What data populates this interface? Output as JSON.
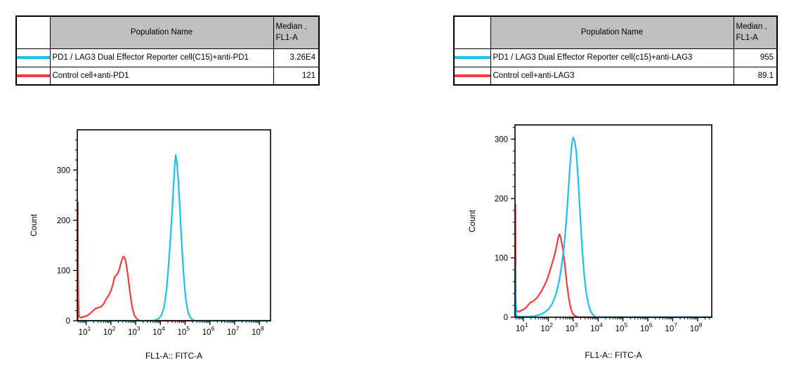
{
  "colors": {
    "reporter_cyan": "#18C2EE",
    "control_red": "#F73B3B",
    "table_header_bg": "#C0C0C0",
    "axis_black": "#000000"
  },
  "tables": [
    {
      "headers": {
        "population": "Population Name",
        "median_line1": "Median ,",
        "median_line2": "FL1-A"
      },
      "rows": [
        {
          "color": "#18C2EE",
          "name": "PD1 / LAG3 Dual Effector Reporter cell(C15)+anti-PD1",
          "median": "3.26E4"
        },
        {
          "color": "#F73B3B",
          "name": "Control cell+anti-PD1",
          "median": "121"
        }
      ]
    },
    {
      "headers": {
        "population": "Population Name",
        "median_line1": "Median ,",
        "median_line2": "FL1-A"
      },
      "rows": [
        {
          "color": "#18C2EE",
          "name": "PD1 / LAG3 Dual Effector Reporter cell(c15)+anti-LAG3",
          "median": "955"
        },
        {
          "color": "#F73B3B",
          "name": "Control cell+anti-LAG3",
          "median": "89.1"
        }
      ]
    }
  ],
  "chart_data": [
    {
      "type": "line",
      "panel": "anti-PD1 histogram",
      "title": "",
      "xlabel": "FL1-A:: FITC-A",
      "ylabel": "Count",
      "x_scale": "log10",
      "x_major_ticks": [
        1,
        2,
        3,
        4,
        5,
        6,
        7,
        8
      ],
      "x_range_decades": [
        0.64,
        8.45
      ],
      "ylim": [
        0,
        380
      ],
      "yticks": [
        0,
        100,
        200,
        300
      ],
      "y_minor_step": 20,
      "grid": false,
      "legend": "none",
      "series": [
        {
          "name": "Control cell+anti-PD1",
          "color": "#F73B3B",
          "peak_x_decade": 2.5,
          "peak_count": 128,
          "edge_spike_count": 235,
          "points": [
            [
              0.66,
              0
            ],
            [
              0.665,
              235
            ],
            [
              0.672,
              120
            ],
            [
              0.685,
              40
            ],
            [
              0.7,
              14
            ],
            [
              0.72,
              8
            ],
            [
              0.8,
              6
            ],
            [
              0.9,
              8
            ],
            [
              1.0,
              9
            ],
            [
              1.1,
              12
            ],
            [
              1.2,
              16
            ],
            [
              1.3,
              21
            ],
            [
              1.4,
              25
            ],
            [
              1.5,
              26
            ],
            [
              1.6,
              28
            ],
            [
              1.7,
              33
            ],
            [
              1.8,
              42
            ],
            [
              1.9,
              50
            ],
            [
              2.0,
              60
            ],
            [
              2.08,
              72
            ],
            [
              2.14,
              86
            ],
            [
              2.2,
              90
            ],
            [
              2.28,
              94
            ],
            [
              2.35,
              104
            ],
            [
              2.42,
              118
            ],
            [
              2.5,
              128
            ],
            [
              2.56,
              125
            ],
            [
              2.62,
              113
            ],
            [
              2.7,
              85
            ],
            [
              2.78,
              52
            ],
            [
              2.86,
              26
            ],
            [
              2.94,
              12
            ],
            [
              3.02,
              5
            ],
            [
              3.12,
              1
            ],
            [
              3.2,
              0
            ],
            [
              8.45,
              0
            ]
          ]
        },
        {
          "name": "PD1 / LAG3 Dual Effector Reporter cell(C15)+anti-PD1",
          "color": "#18C2EE",
          "peak_x_decade": 4.62,
          "peak_count": 330,
          "edge_spike_count": 0,
          "points": [
            [
              0.64,
              0
            ],
            [
              3.7,
              0
            ],
            [
              3.85,
              2
            ],
            [
              3.95,
              5
            ],
            [
              4.05,
              12
            ],
            [
              4.15,
              28
            ],
            [
              4.25,
              62
            ],
            [
              4.33,
              110
            ],
            [
              4.4,
              160
            ],
            [
              4.47,
              215
            ],
            [
              4.53,
              270
            ],
            [
              4.58,
              310
            ],
            [
              4.62,
              330
            ],
            [
              4.66,
              318
            ],
            [
              4.72,
              280
            ],
            [
              4.78,
              230
            ],
            [
              4.85,
              165
            ],
            [
              4.92,
              105
            ],
            [
              4.99,
              60
            ],
            [
              5.06,
              32
            ],
            [
              5.13,
              15
            ],
            [
              5.2,
              7
            ],
            [
              5.3,
              2
            ],
            [
              5.4,
              0
            ],
            [
              8.45,
              0
            ]
          ]
        }
      ]
    },
    {
      "type": "line",
      "panel": "anti-LAG3 histogram",
      "title": "",
      "xlabel": "FL1-A:: FITC-A",
      "ylabel": "Count",
      "x_scale": "log10",
      "x_major_ticks": [
        1,
        2,
        3,
        4,
        5,
        6,
        7,
        8
      ],
      "x_range_decades": [
        0.66,
        8.57
      ],
      "ylim": [
        0,
        324
      ],
      "yticks": [
        0,
        100,
        200,
        300
      ],
      "y_minor_step": 20,
      "grid": false,
      "legend": "none",
      "series": [
        {
          "name": "Control cell+anti-LAG3",
          "color": "#F73B3B",
          "peak_x_decade": 2.45,
          "peak_count": 140,
          "edge_spike_count": 190,
          "points": [
            [
              0.67,
              0
            ],
            [
              0.675,
              190
            ],
            [
              0.683,
              80
            ],
            [
              0.695,
              25
            ],
            [
              0.71,
              11
            ],
            [
              0.8,
              9
            ],
            [
              0.9,
              11
            ],
            [
              1.0,
              13
            ],
            [
              1.1,
              16
            ],
            [
              1.2,
              21
            ],
            [
              1.28,
              25
            ],
            [
              1.36,
              26
            ],
            [
              1.45,
              29
            ],
            [
              1.55,
              33
            ],
            [
              1.65,
              39
            ],
            [
              1.75,
              46
            ],
            [
              1.85,
              54
            ],
            [
              1.95,
              64
            ],
            [
              2.05,
              76
            ],
            [
              2.15,
              90
            ],
            [
              2.25,
              105
            ],
            [
              2.33,
              120
            ],
            [
              2.4,
              135
            ],
            [
              2.45,
              140
            ],
            [
              2.5,
              134
            ],
            [
              2.58,
              116
            ],
            [
              2.66,
              90
            ],
            [
              2.74,
              58
            ],
            [
              2.82,
              32
            ],
            [
              2.9,
              15
            ],
            [
              2.98,
              6
            ],
            [
              3.08,
              2
            ],
            [
              3.18,
              0
            ],
            [
              8.57,
              0
            ]
          ]
        },
        {
          "name": "PD1 / LAG3 Dual Effector Reporter cell(c15)+anti-LAG3",
          "color": "#18C2EE",
          "peak_x_decade": 3.0,
          "peak_count": 303,
          "edge_spike_count": 88,
          "points": [
            [
              0.665,
              0
            ],
            [
              0.67,
              88
            ],
            [
              0.678,
              30
            ],
            [
              0.69,
              8
            ],
            [
              0.72,
              2
            ],
            [
              0.9,
              1
            ],
            [
              1.2,
              1
            ],
            [
              1.45,
              2
            ],
            [
              1.65,
              4
            ],
            [
              1.85,
              8
            ],
            [
              2.0,
              13
            ],
            [
              2.15,
              22
            ],
            [
              2.3,
              38
            ],
            [
              2.42,
              58
            ],
            [
              2.52,
              82
            ],
            [
              2.62,
              115
            ],
            [
              2.72,
              160
            ],
            [
              2.8,
              212
            ],
            [
              2.88,
              260
            ],
            [
              2.94,
              290
            ],
            [
              3.0,
              303
            ],
            [
              3.06,
              296
            ],
            [
              3.12,
              280
            ],
            [
              3.2,
              232
            ],
            [
              3.28,
              172
            ],
            [
              3.36,
              115
            ],
            [
              3.44,
              72
            ],
            [
              3.52,
              42
            ],
            [
              3.62,
              20
            ],
            [
              3.72,
              8
            ],
            [
              3.82,
              3
            ],
            [
              3.92,
              0
            ],
            [
              8.57,
              0
            ]
          ]
        }
      ]
    }
  ]
}
